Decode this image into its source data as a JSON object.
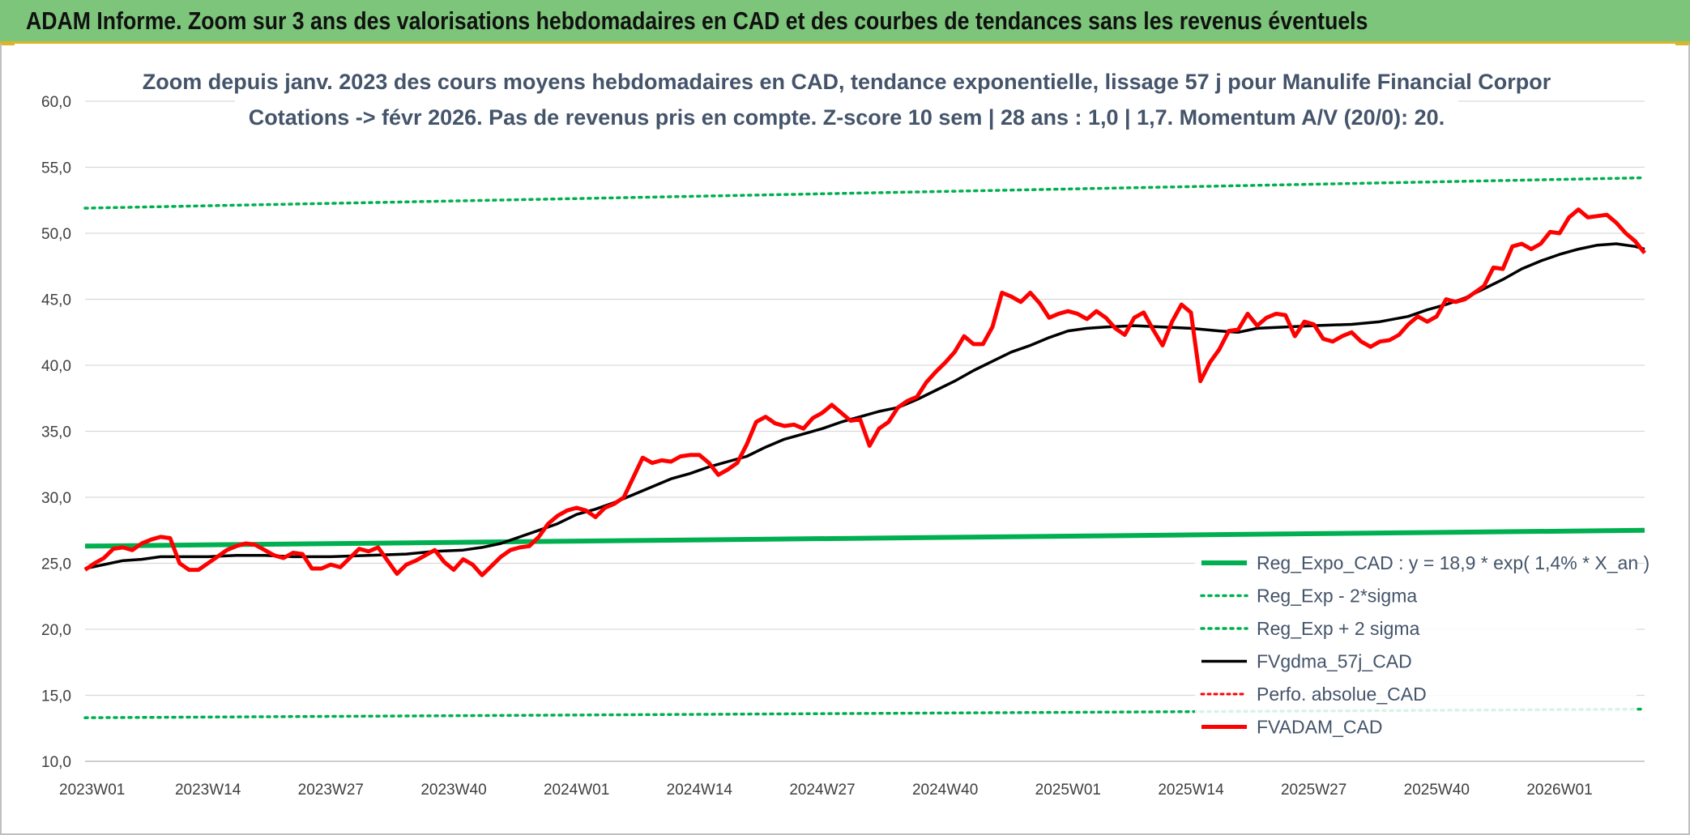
{
  "banner": {
    "title": "ADAM Informe. Zoom sur 3 ans des valorisations hebdomadaires en CAD et des courbes de tendances sans les revenus éventuels"
  },
  "colors": {
    "banner_bg": "#7cc57a",
    "regression": "#00b050",
    "sigma": "#00b050",
    "moving_average": "#000000",
    "perfo": "#ff0000",
    "price": "#ff0000"
  },
  "chart_data": {
    "type": "line",
    "title_lines": [
      "Zoom depuis janv. 2023 des cours moyens hebdomadaires en CAD, tendance exponentielle, lissage 57 j pour Manulife Financial Corpor",
      "Cotations -> févr 2026. Pas de revenus pris en compte. Z-score 10 sem | 28 ans : 1,0 | 1,7. Momentum A/V (20/0): 20."
    ],
    "ylim": [
      10,
      60
    ],
    "y_ticks": [
      "10,0",
      "15,0",
      "20,0",
      "25,0",
      "30,0",
      "35,0",
      "40,0",
      "45,0",
      "50,0",
      "55,0",
      "60,0"
    ],
    "x_ticks": [
      {
        "label": "2023W01",
        "week": 0
      },
      {
        "label": "2023W14",
        "week": 13
      },
      {
        "label": "2023W27",
        "week": 26
      },
      {
        "label": "2023W40",
        "week": 39
      },
      {
        "label": "2024W01",
        "week": 52
      },
      {
        "label": "2024W14",
        "week": 65
      },
      {
        "label": "2024W27",
        "week": 78
      },
      {
        "label": "2024W40",
        "week": 91
      },
      {
        "label": "2025W01",
        "week": 104
      },
      {
        "label": "2025W14",
        "week": 117
      },
      {
        "label": "2025W27",
        "week": 130
      },
      {
        "label": "2025W40",
        "week": 143
      },
      {
        "label": "2026W01",
        "week": 156
      }
    ],
    "x_max_week": 165,
    "grid": "horizontal",
    "legend_position": "bottom-right",
    "series": [
      {
        "name": "Reg_Expo_CAD : y = 18,9 * exp( 1,4% *  X_an )",
        "style": "solid-thick",
        "points": [
          [
            0,
            26.3
          ],
          [
            165,
            27.5
          ]
        ]
      },
      {
        "name": "Reg_Exp - 2*sigma",
        "style": "dotted",
        "points": [
          [
            0,
            13.3
          ],
          [
            165,
            13.95
          ]
        ]
      },
      {
        "name": "Reg_Exp + 2 sigma",
        "style": "dotted",
        "points": [
          [
            0,
            51.9
          ],
          [
            165,
            54.2
          ]
        ]
      },
      {
        "name": "FVgdma_57j_CAD",
        "style": "solid",
        "points": [
          [
            0,
            24.6
          ],
          [
            2,
            24.9
          ],
          [
            4,
            25.2
          ],
          [
            6,
            25.3
          ],
          [
            8,
            25.5
          ],
          [
            10,
            25.5
          ],
          [
            13,
            25.5
          ],
          [
            16,
            25.6
          ],
          [
            19,
            25.6
          ],
          [
            22,
            25.5
          ],
          [
            26,
            25.5
          ],
          [
            30,
            25.6
          ],
          [
            34,
            25.7
          ],
          [
            37,
            25.9
          ],
          [
            40,
            26.0
          ],
          [
            42,
            26.2
          ],
          [
            44,
            26.5
          ],
          [
            46,
            27.0
          ],
          [
            48,
            27.5
          ],
          [
            50,
            28.0
          ],
          [
            52,
            28.7
          ],
          [
            54,
            29.1
          ],
          [
            56,
            29.6
          ],
          [
            58,
            30.2
          ],
          [
            60,
            30.8
          ],
          [
            62,
            31.4
          ],
          [
            64,
            31.8
          ],
          [
            66,
            32.3
          ],
          [
            68,
            32.7
          ],
          [
            70,
            33.1
          ],
          [
            72,
            33.8
          ],
          [
            74,
            34.4
          ],
          [
            76,
            34.8
          ],
          [
            78,
            35.2
          ],
          [
            80,
            35.7
          ],
          [
            82,
            36.1
          ],
          [
            84,
            36.5
          ],
          [
            86,
            36.8
          ],
          [
            88,
            37.4
          ],
          [
            90,
            38.1
          ],
          [
            92,
            38.8
          ],
          [
            94,
            39.6
          ],
          [
            96,
            40.3
          ],
          [
            98,
            41.0
          ],
          [
            100,
            41.5
          ],
          [
            102,
            42.1
          ],
          [
            104,
            42.6
          ],
          [
            106,
            42.8
          ],
          [
            108,
            42.9
          ],
          [
            111,
            43.0
          ],
          [
            114,
            42.9
          ],
          [
            117,
            42.8
          ],
          [
            120,
            42.6
          ],
          [
            122,
            42.5
          ],
          [
            124,
            42.8
          ],
          [
            127,
            42.9
          ],
          [
            130,
            43.0
          ],
          [
            134,
            43.1
          ],
          [
            137,
            43.3
          ],
          [
            140,
            43.7
          ],
          [
            142,
            44.2
          ],
          [
            144,
            44.6
          ],
          [
            146,
            45.1
          ],
          [
            148,
            45.8
          ],
          [
            150,
            46.5
          ],
          [
            152,
            47.3
          ],
          [
            154,
            47.9
          ],
          [
            156,
            48.4
          ],
          [
            158,
            48.8
          ],
          [
            160,
            49.1
          ],
          [
            162,
            49.2
          ],
          [
            164,
            49.0
          ],
          [
            165,
            48.8
          ]
        ]
      },
      {
        "name": "Perfo. absolue_CAD",
        "style": "dotted-red",
        "points": []
      },
      {
        "name": "FVADAM_CAD",
        "style": "solid-thick",
        "points": [
          [
            0,
            24.5
          ],
          [
            1,
            25.0
          ],
          [
            2,
            25.4
          ],
          [
            3,
            26.1
          ],
          [
            4,
            26.2
          ],
          [
            5,
            26.0
          ],
          [
            6,
            26.5
          ],
          [
            7,
            26.8
          ],
          [
            8,
            27.0
          ],
          [
            9,
            26.9
          ],
          [
            10,
            25.0
          ],
          [
            11,
            24.5
          ],
          [
            12,
            24.5
          ],
          [
            13,
            25.0
          ],
          [
            14,
            25.5
          ],
          [
            15,
            26.0
          ],
          [
            16,
            26.3
          ],
          [
            17,
            26.5
          ],
          [
            18,
            26.4
          ],
          [
            19,
            26.0
          ],
          [
            20,
            25.6
          ],
          [
            21,
            25.4
          ],
          [
            22,
            25.8
          ],
          [
            23,
            25.7
          ],
          [
            24,
            24.6
          ],
          [
            25,
            24.6
          ],
          [
            26,
            24.9
          ],
          [
            27,
            24.7
          ],
          [
            28,
            25.4
          ],
          [
            29,
            26.1
          ],
          [
            30,
            25.9
          ],
          [
            31,
            26.2
          ],
          [
            32,
            25.2
          ],
          [
            33,
            24.2
          ],
          [
            34,
            24.9
          ],
          [
            35,
            25.2
          ],
          [
            36,
            25.6
          ],
          [
            37,
            26.0
          ],
          [
            38,
            25.1
          ],
          [
            39,
            24.5
          ],
          [
            40,
            25.3
          ],
          [
            41,
            24.9
          ],
          [
            42,
            24.1
          ],
          [
            43,
            24.8
          ],
          [
            44,
            25.5
          ],
          [
            45,
            26.0
          ],
          [
            46,
            26.2
          ],
          [
            47,
            26.3
          ],
          [
            48,
            27.0
          ],
          [
            49,
            28.0
          ],
          [
            50,
            28.6
          ],
          [
            51,
            29.0
          ],
          [
            52,
            29.2
          ],
          [
            53,
            29.0
          ],
          [
            54,
            28.5
          ],
          [
            55,
            29.2
          ],
          [
            56,
            29.5
          ],
          [
            57,
            30.0
          ],
          [
            58,
            31.5
          ],
          [
            59,
            33.0
          ],
          [
            60,
            32.6
          ],
          [
            61,
            32.8
          ],
          [
            62,
            32.7
          ],
          [
            63,
            33.1
          ],
          [
            64,
            33.2
          ],
          [
            65,
            33.2
          ],
          [
            66,
            32.6
          ],
          [
            67,
            31.7
          ],
          [
            68,
            32.1
          ],
          [
            69,
            32.6
          ],
          [
            70,
            34.0
          ],
          [
            71,
            35.7
          ],
          [
            72,
            36.1
          ],
          [
            73,
            35.6
          ],
          [
            74,
            35.4
          ],
          [
            75,
            35.5
          ],
          [
            76,
            35.2
          ],
          [
            77,
            36.0
          ],
          [
            78,
            36.4
          ],
          [
            79,
            37.0
          ],
          [
            80,
            36.4
          ],
          [
            81,
            35.8
          ],
          [
            82,
            35.9
          ],
          [
            83,
            33.9
          ],
          [
            84,
            35.2
          ],
          [
            85,
            35.7
          ],
          [
            86,
            36.8
          ],
          [
            87,
            37.3
          ],
          [
            88,
            37.6
          ],
          [
            89,
            38.7
          ],
          [
            90,
            39.5
          ],
          [
            91,
            40.2
          ],
          [
            92,
            41.0
          ],
          [
            93,
            42.2
          ],
          [
            94,
            41.6
          ],
          [
            95,
            41.6
          ],
          [
            96,
            42.9
          ],
          [
            97,
            45.5
          ],
          [
            98,
            45.2
          ],
          [
            99,
            44.8
          ],
          [
            100,
            45.5
          ],
          [
            101,
            44.7
          ],
          [
            102,
            43.6
          ],
          [
            103,
            43.9
          ],
          [
            104,
            44.1
          ],
          [
            105,
            43.9
          ],
          [
            106,
            43.5
          ],
          [
            107,
            44.1
          ],
          [
            108,
            43.6
          ],
          [
            109,
            42.8
          ],
          [
            110,
            42.3
          ],
          [
            111,
            43.6
          ],
          [
            112,
            44.0
          ],
          [
            113,
            42.7
          ],
          [
            114,
            41.5
          ],
          [
            115,
            43.3
          ],
          [
            116,
            44.6
          ],
          [
            117,
            44.0
          ],
          [
            118,
            38.8
          ],
          [
            119,
            40.2
          ],
          [
            120,
            41.2
          ],
          [
            121,
            42.6
          ],
          [
            122,
            42.7
          ],
          [
            123,
            43.9
          ],
          [
            124,
            43.0
          ],
          [
            125,
            43.6
          ],
          [
            126,
            43.9
          ],
          [
            127,
            43.8
          ],
          [
            128,
            42.2
          ],
          [
            129,
            43.3
          ],
          [
            130,
            43.1
          ],
          [
            131,
            42.0
          ],
          [
            132,
            41.8
          ],
          [
            133,
            42.2
          ],
          [
            134,
            42.5
          ],
          [
            135,
            41.8
          ],
          [
            136,
            41.4
          ],
          [
            137,
            41.8
          ],
          [
            138,
            41.9
          ],
          [
            139,
            42.3
          ],
          [
            140,
            43.1
          ],
          [
            141,
            43.7
          ],
          [
            142,
            43.3
          ],
          [
            143,
            43.7
          ],
          [
            144,
            45.0
          ],
          [
            145,
            44.8
          ],
          [
            146,
            45.0
          ],
          [
            147,
            45.5
          ],
          [
            148,
            46.0
          ],
          [
            149,
            47.4
          ],
          [
            150,
            47.3
          ],
          [
            151,
            49.0
          ],
          [
            152,
            49.2
          ],
          [
            153,
            48.8
          ],
          [
            154,
            49.2
          ],
          [
            155,
            50.1
          ],
          [
            156,
            50.0
          ],
          [
            157,
            51.2
          ],
          [
            158,
            51.8
          ],
          [
            159,
            51.2
          ],
          [
            160,
            51.3
          ],
          [
            161,
            51.4
          ],
          [
            162,
            50.8
          ],
          [
            163,
            50.0
          ],
          [
            164,
            49.4
          ],
          [
            165,
            48.5
          ]
        ]
      }
    ]
  }
}
